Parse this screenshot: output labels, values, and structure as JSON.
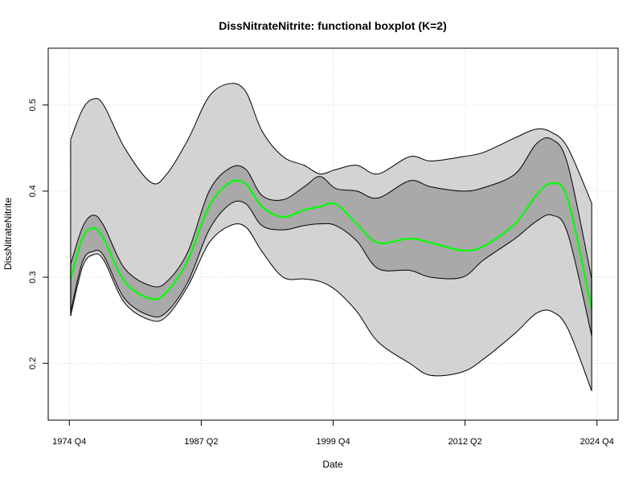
{
  "chart_data": {
    "type": "area",
    "title": "DissNitrateNitrite: functional boxplot (K=2)",
    "xlabel": "Date",
    "ylabel": "DissNitrateNitrite",
    "x_ticks": [
      "1974 Q4",
      "1987 Q2",
      "1999 Q4",
      "2012 Q2",
      "2024 Q4"
    ],
    "y_ticks": [
      "0.2",
      "0.3",
      "0.4",
      "0.5"
    ],
    "xlim": [
      1974.75,
      2024.75
    ],
    "ylim": [
      0.15,
      0.55
    ],
    "grid": true,
    "colors": {
      "outer_band": "#d3d3d3",
      "inner_band": "#a9a9a9",
      "median": "#00ff00",
      "outline": "#000000",
      "grid": "#cccccc"
    },
    "series": [
      {
        "name": "",
        "role": "outer_upper",
        "x": [
          1974.875,
          1976,
          1977,
          1978,
          1980,
          1982.5,
          1984,
          1986,
          1988,
          1990,
          1991.5,
          1993,
          1995,
          1997,
          1998.5,
          2000,
          2002,
          2004,
          2007,
          2009,
          2012,
          2014,
          2017,
          2019,
          2020.5,
          2022,
          2024.25
        ],
        "values": [
          0.46,
          0.495,
          0.507,
          0.5,
          0.45,
          0.41,
          0.42,
          0.46,
          0.51,
          0.525,
          0.515,
          0.47,
          0.44,
          0.43,
          0.42,
          0.425,
          0.43,
          0.42,
          0.44,
          0.435,
          0.44,
          0.445,
          0.462,
          0.472,
          0.468,
          0.45,
          0.386
        ]
      },
      {
        "name": "",
        "role": "inner_upper",
        "x": [
          1974.875,
          1976,
          1977,
          1978,
          1980,
          1982.5,
          1984,
          1986,
          1988,
          1990,
          1991.5,
          1993,
          1995,
          1997,
          1998.5,
          2000,
          2002,
          2004,
          2007,
          2009,
          2012,
          2014,
          2017,
          2019,
          2020.5,
          2022,
          2024.25
        ],
        "values": [
          0.315,
          0.358,
          0.372,
          0.36,
          0.31,
          0.29,
          0.295,
          0.33,
          0.4,
          0.427,
          0.425,
          0.395,
          0.39,
          0.405,
          0.417,
          0.403,
          0.4,
          0.392,
          0.412,
          0.405,
          0.4,
          0.404,
          0.42,
          0.455,
          0.46,
          0.43,
          0.298
        ]
      },
      {
        "name": "",
        "role": "median",
        "x": [
          1974.875,
          1976,
          1977,
          1978,
          1980,
          1982.5,
          1984,
          1986,
          1988,
          1990,
          1991.5,
          1993,
          1995,
          1997,
          1998.5,
          2000,
          2002,
          2004,
          2007,
          2009,
          2012,
          2014,
          2017,
          2019,
          2020.5,
          2022,
          2024.25
        ],
        "values": [
          0.298,
          0.345,
          0.357,
          0.345,
          0.295,
          0.275,
          0.283,
          0.32,
          0.382,
          0.41,
          0.408,
          0.382,
          0.37,
          0.378,
          0.382,
          0.385,
          0.362,
          0.34,
          0.345,
          0.34,
          0.331,
          0.336,
          0.362,
          0.395,
          0.409,
          0.39,
          0.263
        ]
      },
      {
        "name": "",
        "role": "inner_lower",
        "x": [
          1974.875,
          1976,
          1977,
          1978,
          1980,
          1982.5,
          1984,
          1986,
          1988,
          1990,
          1991.5,
          1993,
          1995,
          1997,
          1998.5,
          2000,
          2002,
          2004,
          2007,
          2009,
          2012,
          2014,
          2017,
          2019,
          2020.5,
          2022,
          2024.25
        ],
        "values": [
          0.26,
          0.318,
          0.33,
          0.325,
          0.275,
          0.255,
          0.26,
          0.295,
          0.355,
          0.385,
          0.385,
          0.36,
          0.355,
          0.36,
          0.362,
          0.36,
          0.342,
          0.31,
          0.308,
          0.3,
          0.3,
          0.32,
          0.345,
          0.365,
          0.372,
          0.35,
          0.232
        ]
      },
      {
        "name": "",
        "role": "outer_lower",
        "x": [
          1974.875,
          1976,
          1977,
          1978,
          1980,
          1982.5,
          1984,
          1986,
          1988,
          1990,
          1991.5,
          1993,
          1995,
          1997,
          1998.5,
          2000,
          2002,
          2004,
          2007,
          2009,
          2012,
          2014,
          2017,
          2019,
          2020.5,
          2022,
          2024.25
        ],
        "values": [
          0.255,
          0.312,
          0.326,
          0.32,
          0.27,
          0.25,
          0.255,
          0.29,
          0.34,
          0.36,
          0.358,
          0.33,
          0.3,
          0.298,
          0.295,
          0.285,
          0.26,
          0.225,
          0.2,
          0.186,
          0.19,
          0.205,
          0.235,
          0.258,
          0.26,
          0.24,
          0.168
        ]
      }
    ]
  }
}
